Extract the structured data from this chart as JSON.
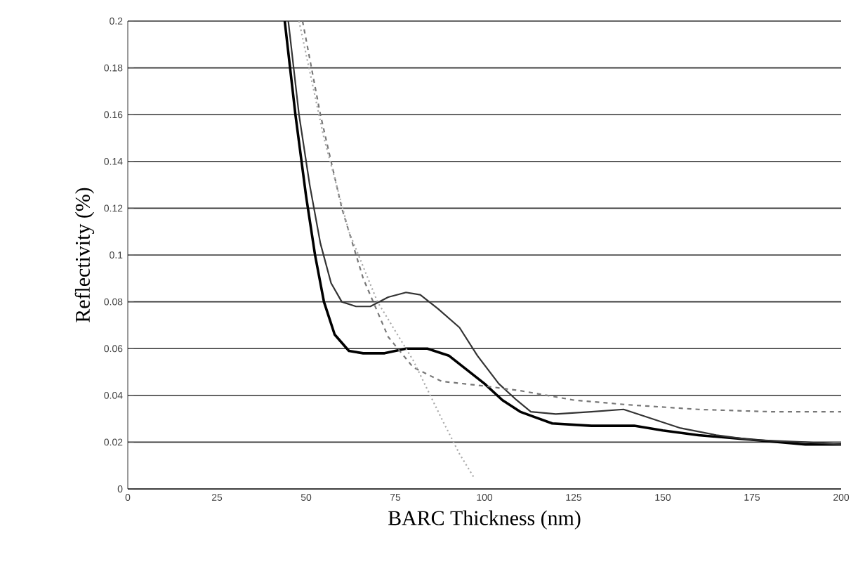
{
  "chart_data": {
    "type": "line",
    "xlabel": "BARC Thickness (nm)",
    "ylabel": "Reflectivity (%)",
    "xlim": [
      0,
      200
    ],
    "ylim": [
      0,
      0.2
    ],
    "xticks": [
      0,
      25,
      50,
      75,
      100,
      125,
      150,
      175,
      200
    ],
    "yticks": [
      0,
      0.02,
      0.04,
      0.06,
      0.08,
      0.1,
      0.12,
      0.14,
      0.16,
      0.18,
      0.2
    ],
    "grid": "y",
    "series": [
      {
        "color": "#000000",
        "line_style": "solid",
        "x": [
          44,
          47,
          50,
          52.5,
          55,
          58,
          62,
          66,
          72,
          78,
          84,
          90,
          95,
          100,
          105,
          110,
          119,
          130,
          142,
          150,
          160,
          175,
          190,
          200
        ],
        "values": [
          0.2,
          0.16,
          0.125,
          0.1,
          0.08,
          0.066,
          0.059,
          0.058,
          0.058,
          0.06,
          0.06,
          0.057,
          0.051,
          0.045,
          0.038,
          0.033,
          0.028,
          0.027,
          0.027,
          0.025,
          0.023,
          0.021,
          0.019,
          0.019
        ]
      },
      {
        "color": "#333333",
        "line_style": "solid",
        "x": [
          45,
          48,
          51,
          54,
          57,
          60,
          64,
          68,
          73,
          78,
          82,
          87,
          93,
          98,
          104,
          109,
          113,
          120,
          130,
          139,
          145,
          155,
          165,
          175,
          190,
          200
        ],
        "values": [
          0.2,
          0.16,
          0.13,
          0.105,
          0.088,
          0.08,
          0.078,
          0.078,
          0.082,
          0.084,
          0.083,
          0.077,
          0.069,
          0.057,
          0.045,
          0.038,
          0.033,
          0.032,
          0.033,
          0.034,
          0.031,
          0.026,
          0.023,
          0.021,
          0.02,
          0.019
        ]
      },
      {
        "color": "#777777",
        "line_style": "dashed",
        "x": [
          49,
          54,
          60,
          66,
          73,
          80,
          88,
          100,
          110,
          125,
          140,
          160,
          180,
          200
        ],
        "values": [
          0.2,
          0.16,
          0.12,
          0.09,
          0.065,
          0.052,
          0.046,
          0.044,
          0.042,
          0.038,
          0.036,
          0.034,
          0.033,
          0.033
        ]
      },
      {
        "color": "#aaaaaa",
        "line_style": "dotted",
        "x": [
          48,
          55,
          62,
          70,
          80,
          88,
          93,
          97
        ],
        "values": [
          0.2,
          0.15,
          0.11,
          0.08,
          0.055,
          0.03,
          0.015,
          0.005
        ]
      }
    ]
  }
}
